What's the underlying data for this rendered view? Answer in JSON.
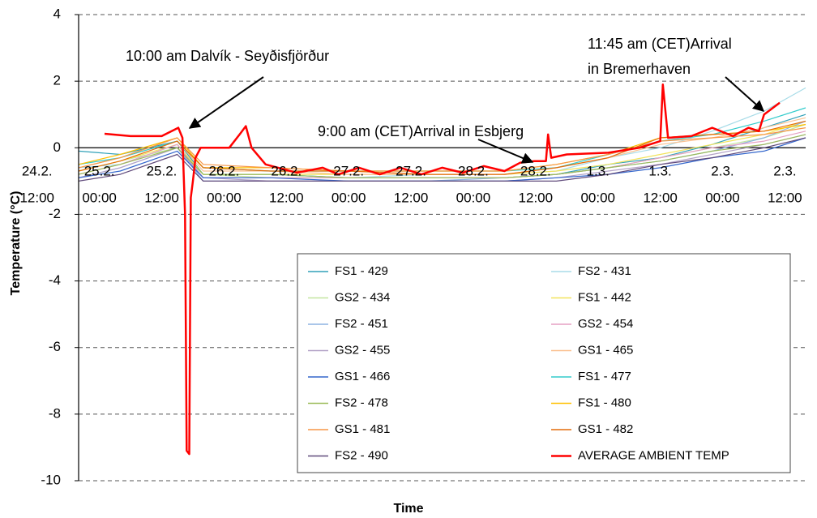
{
  "chart_data": {
    "type": "line",
    "y_label": "Temperature (°C)",
    "x_label": "Time",
    "xlim": [
      8,
      148
    ],
    "xticks": [
      {
        "value": 0,
        "label": "24.2.\n12:00"
      },
      {
        "value": 12,
        "label": "25.2.\n00:00"
      },
      {
        "value": 24,
        "label": "25.2.\n12:00"
      },
      {
        "value": 36,
        "label": "26.2.\n00:00"
      },
      {
        "value": 48,
        "label": "26.2.\n12:00"
      },
      {
        "value": 60,
        "label": "27.2.\n00:00"
      },
      {
        "value": 72,
        "label": "27.2.\n12:00"
      },
      {
        "value": 84,
        "label": "28.2.\n00:00"
      },
      {
        "value": 96,
        "label": "28.2.\n12:00"
      },
      {
        "value": 108,
        "label": "1.3.\n00:00"
      },
      {
        "value": 120,
        "label": "1.3.\n12:00"
      },
      {
        "value": 132,
        "label": "2.3.\n00:00"
      },
      {
        "value": 144,
        "label": "2.3.\n12:00"
      }
    ],
    "ylim": [
      -10,
      4
    ],
    "yticks": [
      4,
      2,
      0,
      -2,
      -4,
      -6,
      -8,
      -10
    ],
    "grid": true,
    "annotations": [
      [
        "10:00 am Dalvík - Seyðisfjörður"
      ],
      [
        "9:00 am (CET)Arrival in Esbjerg"
      ],
      [
        "11:45 am (CET)Arrival",
        "in Bremerhaven"
      ]
    ],
    "x": [
      8,
      16,
      27,
      32,
      45,
      60,
      75,
      90,
      100,
      110,
      120,
      130,
      140,
      148
    ],
    "series": [
      {
        "name": "FS1 - 429",
        "color": "#31a1b8",
        "values": [
          -0.1,
          -0.2,
          0.2,
          -0.8,
          -0.8,
          -0.9,
          -0.9,
          -0.9,
          -0.8,
          -0.5,
          -0.3,
          0.1,
          0.6,
          1.0
        ]
      },
      {
        "name": "FS2 - 431",
        "color": "#a8dce8",
        "values": [
          -0.6,
          -0.5,
          0.1,
          -0.9,
          -0.9,
          -0.9,
          -0.8,
          -0.8,
          -0.7,
          -0.3,
          0.0,
          0.5,
          1.1,
          1.8
        ]
      },
      {
        "name": "GS2 - 434",
        "color": "#c3e6a0",
        "values": [
          -0.7,
          -0.4,
          0.0,
          -0.8,
          -0.9,
          -0.9,
          -0.9,
          -0.9,
          -0.8,
          -0.6,
          -0.3,
          0.0,
          0.3,
          0.7
        ]
      },
      {
        "name": "FS1 - 442",
        "color": "#f2e35c",
        "values": [
          -0.7,
          -0.4,
          0.1,
          -0.8,
          -0.8,
          -0.8,
          -0.8,
          -0.8,
          -0.7,
          -0.5,
          -0.2,
          0.1,
          0.4,
          0.8
        ]
      },
      {
        "name": "FS2 - 451",
        "color": "#8db4e2",
        "values": [
          -0.9,
          -0.6,
          0.0,
          -1.0,
          -1.0,
          -1.0,
          -1.0,
          -0.9,
          -0.8,
          -0.6,
          -0.4,
          -0.1,
          0.3,
          0.8
        ]
      },
      {
        "name": "GS2 - 454",
        "color": "#e6a0c4",
        "values": [
          -0.8,
          -0.5,
          0.1,
          -0.9,
          -0.9,
          -0.9,
          -0.9,
          -0.9,
          -0.8,
          -0.6,
          -0.3,
          0.0,
          0.2,
          0.5
        ]
      },
      {
        "name": "GS2 - 455",
        "color": "#b3a2c7",
        "values": [
          -0.9,
          -0.6,
          0.0,
          -0.9,
          -1.0,
          -1.0,
          -1.0,
          -1.0,
          -0.9,
          -0.7,
          -0.5,
          -0.2,
          0.1,
          0.4
        ]
      },
      {
        "name": "GS1 - 465",
        "color": "#fac090",
        "values": [
          -0.6,
          -0.3,
          0.2,
          -0.7,
          -0.7,
          -0.8,
          -0.8,
          -0.8,
          -0.6,
          -0.3,
          0.1,
          0.3,
          0.6,
          0.9
        ]
      },
      {
        "name": "GS1 - 466",
        "color": "#3366cc",
        "values": [
          -0.9,
          -0.7,
          -0.1,
          -0.9,
          -0.9,
          -1.0,
          -1.0,
          -1.0,
          -0.9,
          -0.8,
          -0.6,
          -0.3,
          -0.1,
          0.3
        ]
      },
      {
        "name": "FS1 - 477",
        "color": "#33cccc",
        "values": [
          -0.5,
          -0.3,
          0.2,
          -0.6,
          -0.7,
          -0.7,
          -0.7,
          -0.7,
          -0.6,
          -0.2,
          0.2,
          0.4,
          0.8,
          1.2
        ]
      },
      {
        "name": "FS2 - 478",
        "color": "#9bbb59",
        "values": [
          -0.8,
          -0.5,
          0.0,
          -0.8,
          -0.8,
          -0.9,
          -0.9,
          -0.9,
          -0.8,
          -0.6,
          -0.4,
          -0.1,
          0.1,
          0.4
        ]
      },
      {
        "name": "FS1 - 480",
        "color": "#ffc000",
        "values": [
          -0.5,
          -0.2,
          0.3,
          -0.6,
          -0.6,
          -0.7,
          -0.7,
          -0.7,
          -0.5,
          -0.2,
          0.3,
          0.4,
          0.5,
          0.7
        ]
      },
      {
        "name": "GS1 - 481",
        "color": "#f79646",
        "values": [
          -0.6,
          -0.3,
          0.3,
          -0.5,
          -0.6,
          -0.7,
          -0.7,
          -0.7,
          -0.5,
          -0.2,
          0.2,
          0.3,
          0.4,
          0.6
        ]
      },
      {
        "name": "GS1 - 482",
        "color": "#e46c0a",
        "values": [
          -0.7,
          -0.4,
          0.2,
          -0.6,
          -0.7,
          -0.7,
          -0.8,
          -0.8,
          -0.6,
          -0.3,
          0.3,
          0.4,
          0.5,
          0.8
        ]
      },
      {
        "name": "FS2 - 490",
        "color": "#604a7b",
        "values": [
          -1.0,
          -0.8,
          -0.2,
          -1.0,
          -1.0,
          -1.0,
          -1.0,
          -1.0,
          -1.0,
          -0.8,
          -0.5,
          -0.3,
          0.0,
          0.3
        ]
      },
      {
        "name": "AVERAGE AMBIENT TEMP",
        "color": "#ff0000",
        "x": [
          13,
          18,
          24,
          27.2,
          28.0,
          28.5,
          28.8,
          29.3,
          29.6,
          30.0,
          30.5,
          31.5,
          37,
          39,
          40.2,
          41.3,
          44,
          50,
          55,
          58,
          62,
          66,
          70,
          74,
          78,
          82,
          86,
          90,
          93,
          95.8,
          98.0,
          98.4,
          99,
          102,
          110,
          116,
          118,
          120,
          120.5,
          121.5,
          126,
          130,
          134,
          137,
          139,
          140,
          143
        ],
        "values": [
          0.42,
          0.35,
          0.35,
          0.6,
          0.3,
          -2,
          -9.1,
          -9.2,
          -1.5,
          -1.0,
          -0.3,
          0,
          0,
          0.4,
          0.65,
          0,
          -0.5,
          -0.75,
          -0.6,
          -0.8,
          -0.6,
          -0.8,
          -0.6,
          -0.8,
          -0.6,
          -0.75,
          -0.55,
          -0.7,
          -0.45,
          -0.4,
          -0.4,
          0.4,
          -0.3,
          -0.2,
          -0.15,
          0,
          0.1,
          0.2,
          1.9,
          0.3,
          0.35,
          0.6,
          0.35,
          0.6,
          0.5,
          1.0,
          1.35
        ]
      }
    ]
  }
}
